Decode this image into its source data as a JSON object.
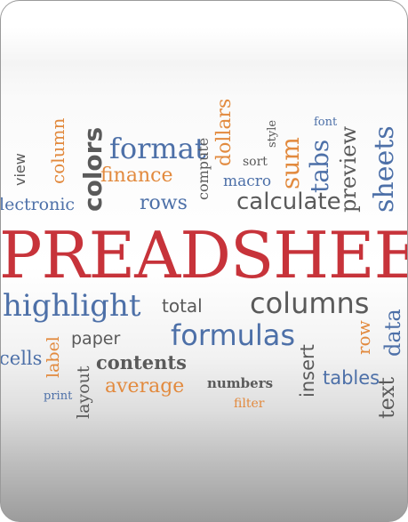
{
  "colors": {
    "orange": "#e28a3e",
    "blue": "#4d70a8",
    "gray": "#5a5a5a",
    "red": "#c7333a"
  },
  "words": [
    {
      "text": "view",
      "color": "gray"
    },
    {
      "text": "column",
      "color": "orange"
    },
    {
      "text": "colors",
      "color": "gray"
    },
    {
      "text": "format",
      "color": "blue"
    },
    {
      "text": "finance",
      "color": "orange"
    },
    {
      "text": "compute",
      "color": "gray"
    },
    {
      "text": "dollars",
      "color": "orange"
    },
    {
      "text": "style",
      "color": "gray"
    },
    {
      "text": "sort",
      "color": "gray"
    },
    {
      "text": "macro",
      "color": "blue"
    },
    {
      "text": "sum",
      "color": "orange"
    },
    {
      "text": "font",
      "color": "blue"
    },
    {
      "text": "tabs",
      "color": "blue"
    },
    {
      "text": "preview",
      "color": "gray"
    },
    {
      "text": "sheets",
      "color": "blue"
    },
    {
      "text": "lectronic",
      "color": "blue"
    },
    {
      "text": "rows",
      "color": "blue"
    },
    {
      "text": "calculate",
      "color": "gray"
    },
    {
      "text": "PREADSHEET",
      "color": "red"
    },
    {
      "text": "highlight",
      "color": "blue"
    },
    {
      "text": "total",
      "color": "gray"
    },
    {
      "text": "columns",
      "color": "gray"
    },
    {
      "text": "paper",
      "color": "gray"
    },
    {
      "text": "formulas",
      "color": "blue"
    },
    {
      "text": "data",
      "color": "blue"
    },
    {
      "text": "row",
      "color": "orange"
    },
    {
      "text": "cells",
      "color": "blue"
    },
    {
      "text": "label",
      "color": "orange"
    },
    {
      "text": "contents",
      "color": "gray"
    },
    {
      "text": "insert",
      "color": "gray"
    },
    {
      "text": "layout",
      "color": "gray"
    },
    {
      "text": "average",
      "color": "orange"
    },
    {
      "text": "numbers",
      "color": "gray"
    },
    {
      "text": "tables",
      "color": "blue"
    },
    {
      "text": "text",
      "color": "gray"
    },
    {
      "text": "print",
      "color": "blue"
    },
    {
      "text": "filter",
      "color": "orange"
    }
  ]
}
